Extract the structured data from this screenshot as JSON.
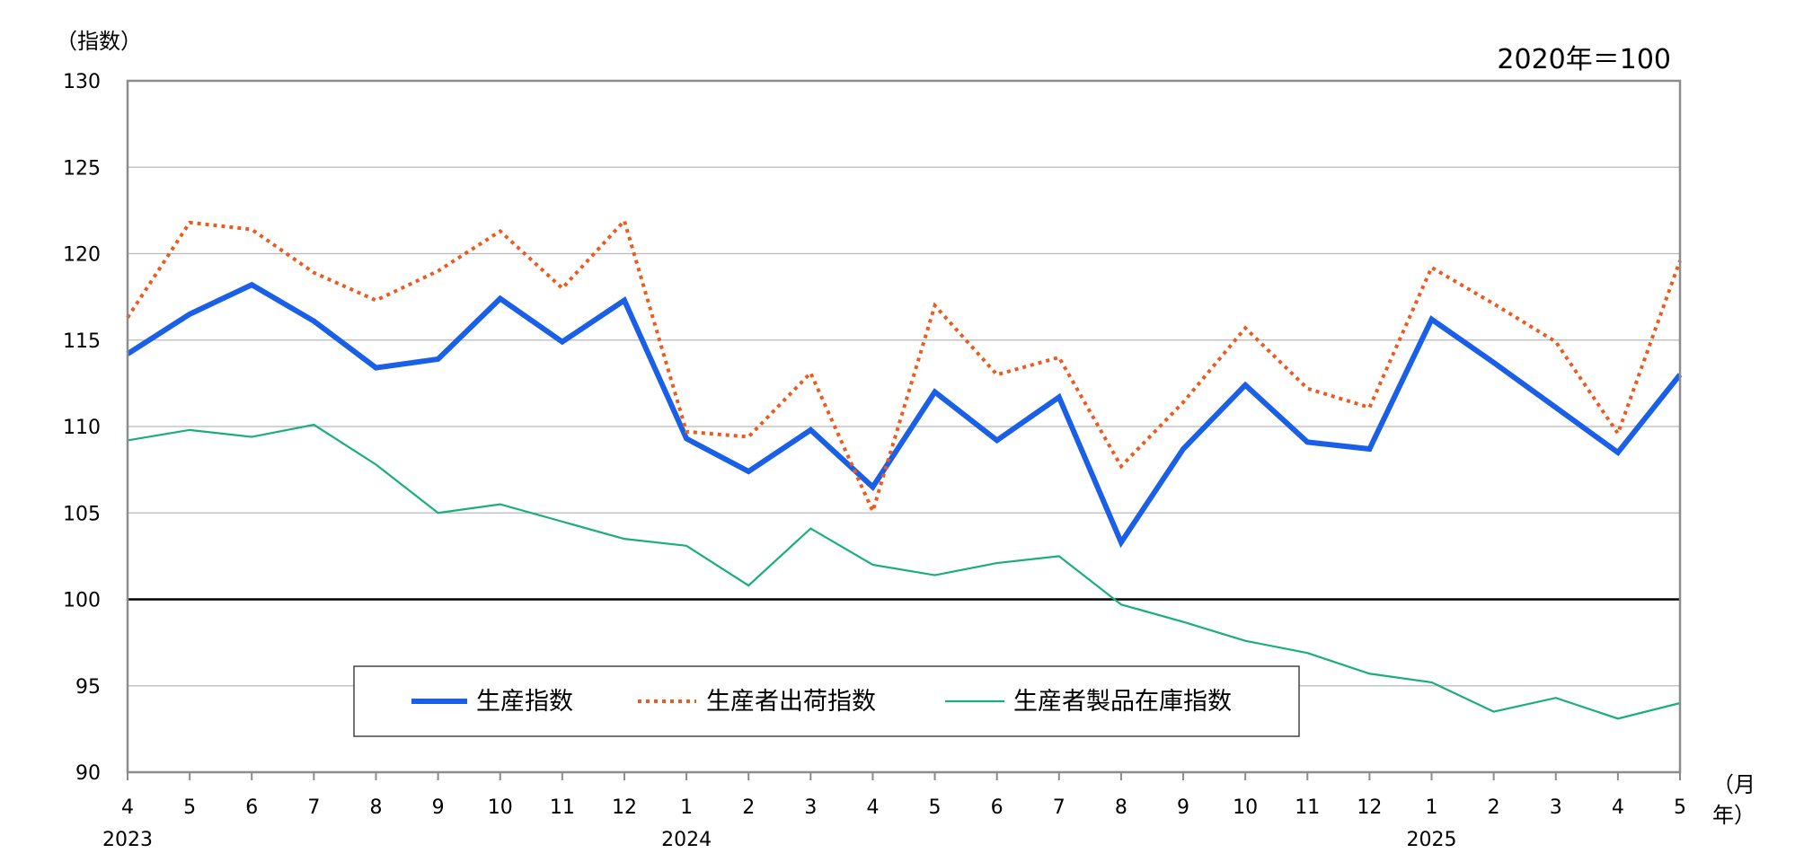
{
  "chart_data": {
    "type": "line",
    "ylabel": "（指数）",
    "base_note": "2020年＝100",
    "xunit_month": "（月",
    "xunit_year": "年）",
    "x_months": [
      "4",
      "5",
      "6",
      "7",
      "8",
      "9",
      "10",
      "11",
      "12",
      "1",
      "2",
      "3",
      "4",
      "5",
      "6",
      "7",
      "8",
      "9",
      "10",
      "11",
      "12",
      "1",
      "2",
      "3",
      "4",
      "5"
    ],
    "x_years": [
      {
        "label": "2023",
        "index": 0
      },
      {
        "label": "2024",
        "index": 9
      },
      {
        "label": "2025",
        "index": 21
      }
    ],
    "ylim": [
      90,
      130
    ],
    "yticks": [
      90,
      95,
      100,
      105,
      110,
      115,
      120,
      125,
      130
    ],
    "reference_line": 100,
    "grid": true,
    "legend_position": "bottom-center",
    "series": [
      {
        "name": "生産指数",
        "color": "#1a5fe8",
        "style": "solid-thick",
        "values": [
          114.2,
          116.5,
          118.2,
          116.1,
          113.4,
          113.9,
          117.4,
          114.9,
          117.3,
          109.3,
          107.4,
          109.8,
          106.5,
          112.0,
          109.2,
          111.7,
          103.3,
          108.7,
          112.4,
          109.1,
          108.7,
          116.2,
          113.7,
          111.1,
          108.5,
          113.0
        ]
      },
      {
        "name": "生産者出荷指数",
        "color": "#ee5a1e",
        "style": "dotted",
        "values": [
          116.3,
          121.8,
          121.4,
          118.9,
          117.3,
          119.0,
          121.3,
          118.0,
          121.9,
          109.7,
          109.4,
          113.1,
          105.1,
          117.0,
          113.0,
          114.0,
          107.7,
          111.4,
          115.7,
          112.2,
          111.1,
          119.2,
          117.1,
          114.9,
          109.6,
          119.6
        ]
      },
      {
        "name": "生産者製品在庫指数",
        "color": "#1aaf7a",
        "style": "solid-thin",
        "values": [
          109.2,
          109.8,
          109.4,
          110.1,
          107.8,
          105.0,
          105.5,
          104.5,
          103.5,
          103.1,
          100.8,
          104.1,
          102.0,
          101.4,
          102.1,
          102.5,
          99.7,
          98.7,
          97.6,
          96.9,
          95.7,
          95.2,
          93.5,
          94.3,
          93.1,
          94.0
        ]
      }
    ]
  }
}
